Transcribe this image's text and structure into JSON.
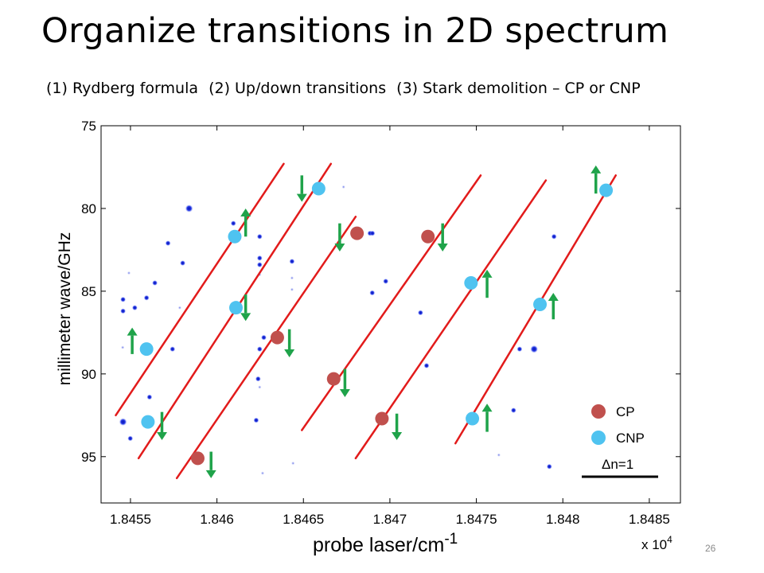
{
  "slide": {
    "title": "Organize transitions in 2D spectrum",
    "subtitle": {
      "item1": "(1) Rydberg formula",
      "item2": "(2) Up/down transitions",
      "item3": "(3) Stark demolition – CP or CNP"
    },
    "page_number": "26"
  },
  "chart_data": {
    "type": "scatter",
    "title": "",
    "xlabel": "probe laser/cm",
    "xlabel_superscript": "-1",
    "x_multiplier": "x 10",
    "x_multiplier_exponent": "4",
    "ylabel": "millimeter wave/GHz",
    "xlim": [
      1.84533,
      1.84868
    ],
    "ylim": [
      75,
      97.8
    ],
    "y_reversed": true,
    "xticks": [
      1.8455,
      1.846,
      1.8465,
      1.847,
      1.8475,
      1.848,
      1.8485
    ],
    "xtick_labels": [
      "1.8455",
      "1.846",
      "1.8465",
      "1.847",
      "1.8475",
      "1.848",
      "1.8485"
    ],
    "yticks": [
      75,
      80,
      85,
      90,
      95
    ],
    "ytick_labels": [
      "75",
      "80",
      "85",
      "90",
      "95"
    ],
    "grid": false,
    "legend": {
      "placement": "bottom-right",
      "entries": [
        {
          "label": "CP",
          "color": "#c0504d"
        },
        {
          "label": "CNP",
          "color": "#4fc3f0"
        }
      ],
      "scale_label": "Δn=1"
    },
    "colors": {
      "fit_line": "#e21b1b",
      "cp": "#c0504d",
      "cnp": "#4fc3f0",
      "arrow": "#1fa34a",
      "spectral_spot": "#1c2fd6"
    },
    "fit_lines": [
      {
        "x": [
          1.845415,
          1.846386
        ],
        "y": [
          92.5,
          77.3
        ]
      },
      {
        "x": [
          1.845547,
          1.846659
        ],
        "y": [
          95.1,
          77.3
        ]
      },
      {
        "x": [
          1.845768,
          1.846802
        ],
        "y": [
          96.3,
          80.5
        ]
      },
      {
        "x": [
          1.846491,
          1.847525
        ],
        "y": [
          93.4,
          78.0
        ]
      },
      {
        "x": [
          1.846802,
          1.847902
        ],
        "y": [
          95.1,
          78.3
        ]
      },
      {
        "x": [
          1.847379,
          1.848306
        ],
        "y": [
          94.2,
          78.0
        ]
      }
    ],
    "cp_points": [
      {
        "x": 1.845889,
        "y": 95.1
      },
      {
        "x": 1.846349,
        "y": 87.8
      },
      {
        "x": 1.846675,
        "y": 90.3
      },
      {
        "x": 1.84681,
        "y": 81.5
      },
      {
        "x": 1.846954,
        "y": 92.7
      },
      {
        "x": 1.84722,
        "y": 81.7
      }
    ],
    "cnp_points": [
      {
        "x": 1.845593,
        "y": 88.5
      },
      {
        "x": 1.845601,
        "y": 92.9
      },
      {
        "x": 1.846103,
        "y": 81.7
      },
      {
        "x": 1.84611,
        "y": 86.0
      },
      {
        "x": 1.846588,
        "y": 78.8
      },
      {
        "x": 1.847469,
        "y": 84.5
      },
      {
        "x": 1.847477,
        "y": 92.7
      },
      {
        "x": 1.847868,
        "y": 85.8
      },
      {
        "x": 1.84825,
        "y": 78.9
      }
    ],
    "transition_arrows": [
      {
        "x": 1.846491,
        "y_from": 78.0,
        "y_to": 79.6,
        "direction": "down"
      },
      {
        "x": 1.846166,
        "y_from": 81.7,
        "y_to": 80.0,
        "direction": "up"
      },
      {
        "x": 1.84671,
        "y_from": 80.9,
        "y_to": 82.6,
        "direction": "down"
      },
      {
        "x": 1.847305,
        "y_from": 80.9,
        "y_to": 82.6,
        "direction": "down"
      },
      {
        "x": 1.847562,
        "y_from": 85.4,
        "y_to": 83.7,
        "direction": "up"
      },
      {
        "x": 1.846166,
        "y_from": 85.2,
        "y_to": 86.8,
        "direction": "down"
      },
      {
        "x": 1.847945,
        "y_from": 86.7,
        "y_to": 85.1,
        "direction": "up"
      },
      {
        "x": 1.84551,
        "y_from": 88.8,
        "y_to": 87.2,
        "direction": "up"
      },
      {
        "x": 1.846419,
        "y_from": 87.3,
        "y_to": 89.0,
        "direction": "down"
      },
      {
        "x": 1.84674,
        "y_from": 89.7,
        "y_to": 91.4,
        "direction": "down"
      },
      {
        "x": 1.845682,
        "y_from": 92.3,
        "y_to": 94.0,
        "direction": "down"
      },
      {
        "x": 1.84704,
        "y_from": 92.4,
        "y_to": 94.0,
        "direction": "down"
      },
      {
        "x": 1.847562,
        "y_from": 93.5,
        "y_to": 91.8,
        "direction": "up"
      },
      {
        "x": 1.845966,
        "y_from": 94.7,
        "y_to": 96.3,
        "direction": "down"
      },
      {
        "x": 1.848191,
        "y_from": 79.1,
        "y_to": 77.4,
        "direction": "up"
      }
    ],
    "spectral_spots": [
      {
        "x": 1.845839,
        "y": 80.0,
        "size": "medium"
      },
      {
        "x": 1.845717,
        "y": 82.1,
        "size": "small"
      },
      {
        "x": 1.845802,
        "y": 83.3,
        "size": "small"
      },
      {
        "x": 1.845641,
        "y": 84.5,
        "size": "small"
      },
      {
        "x": 1.845491,
        "y": 83.9,
        "size": "tiny"
      },
      {
        "x": 1.845457,
        "y": 85.5,
        "size": "small"
      },
      {
        "x": 1.845457,
        "y": 86.2,
        "size": "small"
      },
      {
        "x": 1.845525,
        "y": 86.0,
        "size": "small"
      },
      {
        "x": 1.845593,
        "y": 85.4,
        "size": "small"
      },
      {
        "x": 1.845785,
        "y": 86.0,
        "size": "tiny"
      },
      {
        "x": 1.845455,
        "y": 88.4,
        "size": "tiny"
      },
      {
        "x": 1.845743,
        "y": 88.5,
        "size": "small"
      },
      {
        "x": 1.84561,
        "y": 91.4,
        "size": "small"
      },
      {
        "x": 1.845457,
        "y": 92.9,
        "size": "medium"
      },
      {
        "x": 1.845499,
        "y": 93.9,
        "size": "small"
      },
      {
        "x": 1.846095,
        "y": 80.9,
        "size": "small"
      },
      {
        "x": 1.846247,
        "y": 81.7,
        "size": "small"
      },
      {
        "x": 1.846247,
        "y": 83.0,
        "size": "small"
      },
      {
        "x": 1.846247,
        "y": 83.4,
        "size": "small"
      },
      {
        "x": 1.846247,
        "y": 84.0,
        "size": "tiny"
      },
      {
        "x": 1.846434,
        "y": 83.2,
        "size": "small"
      },
      {
        "x": 1.846434,
        "y": 84.2,
        "size": "tiny"
      },
      {
        "x": 1.846434,
        "y": 84.9,
        "size": "tiny"
      },
      {
        "x": 1.846271,
        "y": 87.8,
        "size": "small"
      },
      {
        "x": 1.846247,
        "y": 88.5,
        "size": "small"
      },
      {
        "x": 1.846238,
        "y": 90.3,
        "size": "small"
      },
      {
        "x": 1.846247,
        "y": 90.8,
        "size": "tiny"
      },
      {
        "x": 1.846227,
        "y": 92.8,
        "size": "small"
      },
      {
        "x": 1.846264,
        "y": 96.0,
        "size": "tiny"
      },
      {
        "x": 1.84644,
        "y": 95.4,
        "size": "tiny"
      },
      {
        "x": 1.846732,
        "y": 78.7,
        "size": "tiny"
      },
      {
        "x": 1.846885,
        "y": 81.5,
        "size": "small"
      },
      {
        "x": 1.846899,
        "y": 81.5,
        "size": "small"
      },
      {
        "x": 1.846976,
        "y": 84.4,
        "size": "small"
      },
      {
        "x": 1.846898,
        "y": 85.1,
        "size": "small"
      },
      {
        "x": 1.847177,
        "y": 86.3,
        "size": "small"
      },
      {
        "x": 1.847212,
        "y": 89.5,
        "size": "small"
      },
      {
        "x": 1.84775,
        "y": 88.5,
        "size": "small"
      },
      {
        "x": 1.847949,
        "y": 81.7,
        "size": "small"
      },
      {
        "x": 1.847834,
        "y": 88.5,
        "size": "medium"
      },
      {
        "x": 1.847715,
        "y": 92.2,
        "size": "small"
      },
      {
        "x": 1.84763,
        "y": 94.9,
        "size": "tiny"
      },
      {
        "x": 1.847922,
        "y": 95.6,
        "size": "small"
      }
    ]
  }
}
